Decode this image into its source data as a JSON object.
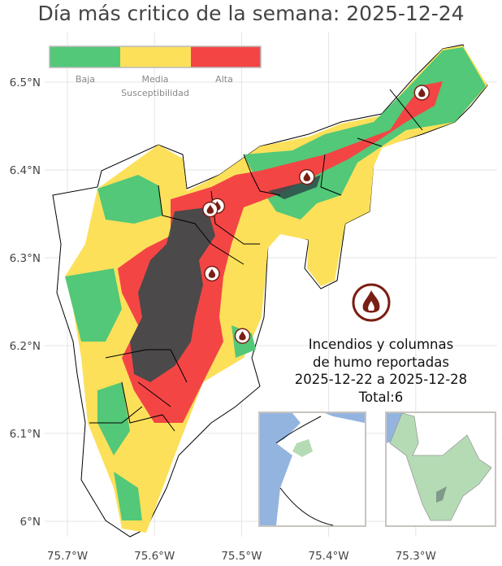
{
  "title": "Día más critico de la semana: 2025-12-24",
  "axes": {
    "x_ticks": [
      "75.7°W",
      "75.6°W",
      "75.5°W",
      "75.4°W",
      "75.3°W"
    ],
    "y_ticks": [
      "6.5°N",
      "6.4°N",
      "6.3°N",
      "6.2°N",
      "6.1°N",
      "6°N"
    ]
  },
  "legend": {
    "title": "Susceptibilidad",
    "items": [
      {
        "label": "Baja",
        "color": "#52c878"
      },
      {
        "label": "Media",
        "color": "#fce05a"
      },
      {
        "label": "Alta",
        "color": "#f44545"
      }
    ]
  },
  "fires": {
    "icon": "fire-icon",
    "color": "#7a1e14",
    "points": [
      {
        "lon": -75.293,
        "lat": 6.488
      },
      {
        "lon": -75.425,
        "lat": 6.392
      },
      {
        "lon": -75.528,
        "lat": 6.359
      },
      {
        "lon": -75.536,
        "lat": 6.355
      },
      {
        "lon": -75.534,
        "lat": 6.282
      },
      {
        "lon": -75.499,
        "lat": 6.211
      }
    ]
  },
  "info": {
    "line1": "Incendios y columnas",
    "line2": "de humo reportadas",
    "line3": "2025-12-22 a 2025-12-28",
    "line4": "Total:6"
  },
  "colors": {
    "water": "#94b4e0",
    "department": "#b5dbb5",
    "dense": "#2d4a4a"
  }
}
